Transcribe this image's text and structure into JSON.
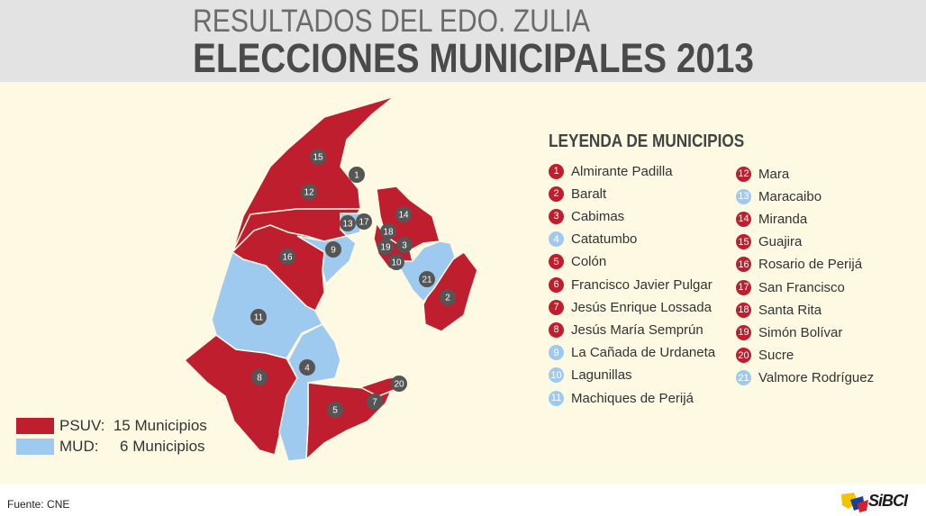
{
  "header": {
    "title_line1": "RESULTADOS DEL EDO. ZULIA",
    "title_line2": "ELECCIONES MUNICIPALES 2013"
  },
  "colors": {
    "psuv": "#bf1e2e",
    "mud": "#9fcaef",
    "marker": "#555555"
  },
  "legend": {
    "title": "LEYENDA DE MUNICIPIOS",
    "items": [
      {
        "num": "1",
        "name": "Almirante Padilla",
        "party": "psuv"
      },
      {
        "num": "2",
        "name": "Baralt",
        "party": "psuv"
      },
      {
        "num": "3",
        "name": "Cabimas",
        "party": "psuv"
      },
      {
        "num": "4",
        "name": "Catatumbo",
        "party": "mud"
      },
      {
        "num": "5",
        "name": "Colón",
        "party": "psuv"
      },
      {
        "num": "6",
        "name": "Francisco Javier Pulgar",
        "party": "psuv"
      },
      {
        "num": "7",
        "name": "Jesús Enrique Lossada",
        "party": "psuv"
      },
      {
        "num": "8",
        "name": "Jesús María Semprún",
        "party": "psuv"
      },
      {
        "num": "9",
        "name": "La Cañada de Urdaneta",
        "party": "mud"
      },
      {
        "num": "10",
        "name": "Lagunillas",
        "party": "mud"
      },
      {
        "num": "11",
        "name": "Machiques de Perijá",
        "party": "mud"
      },
      {
        "num": "12",
        "name": "Mara",
        "party": "psuv"
      },
      {
        "num": "13",
        "name": "Maracaibo",
        "party": "mud"
      },
      {
        "num": "14",
        "name": "Miranda",
        "party": "psuv"
      },
      {
        "num": "15",
        "name": "Guajira",
        "party": "psuv"
      },
      {
        "num": "16",
        "name": "Rosario de Perijá",
        "party": "psuv"
      },
      {
        "num": "17",
        "name": "San Francisco",
        "party": "psuv"
      },
      {
        "num": "18",
        "name": "Santa Rita",
        "party": "psuv"
      },
      {
        "num": "19",
        "name": "Simón Bolívar",
        "party": "psuv"
      },
      {
        "num": "20",
        "name": "Sucre",
        "party": "psuv"
      },
      {
        "num": "21",
        "name": "Valmore Rodríguez",
        "party": "mud"
      }
    ]
  },
  "summary": {
    "psuv_label": "PSUV:  15 Municipios",
    "mud_label": "MUD:     6 Municipios"
  },
  "map_markers": [
    "15",
    "1",
    "12",
    "13",
    "17",
    "14",
    "18",
    "9",
    "19",
    "3",
    "16",
    "10",
    "21",
    "2",
    "11",
    "4",
    "8",
    "20",
    "7",
    "5"
  ],
  "footer": {
    "source": "Fuente: CNE",
    "logo": "SiBCI"
  }
}
